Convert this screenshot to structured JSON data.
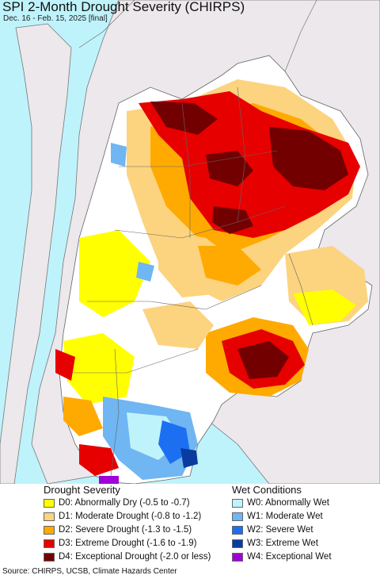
{
  "title": "SPI 2-Month Drought Severity (CHIRPS)",
  "subtitle": "Dec. 16 - Feb. 15, 2025 [final]",
  "source": "Source: CHIRPS, UCSB, Climate Hazards Center",
  "legend": {
    "drought": {
      "heading": "Drought Severity",
      "items": [
        {
          "label": "D0: Abnormally Dry (-0.5 to -0.7)",
          "color": "#ffff00"
        },
        {
          "label": "D1: Moderate Drought (-0.8 to -1.2)",
          "color": "#fcd37f"
        },
        {
          "label": "D2: Severe Drought (-1.3 to -1.5)",
          "color": "#ffaa00"
        },
        {
          "label": "D3: Extreme Drought (-1.6 to -1.9)",
          "color": "#e60000"
        },
        {
          "label": "D4: Exceptional Drought (-2.0 or less)",
          "color": "#730000"
        }
      ]
    },
    "wet": {
      "heading": "Wet Conditions",
      "items": [
        {
          "label": "W0: Abnormally Wet",
          "color": "#bff3fb"
        },
        {
          "label": "W1: Moderate Wet",
          "color": "#6fb6f2"
        },
        {
          "label": "W2: Severe Wet",
          "color": "#1d6ff2"
        },
        {
          "label": "W3: Extreme Wet",
          "color": "#0a3ca0"
        },
        {
          "label": "W4: Exceptional Wet",
          "color": "#a000d8"
        }
      ]
    }
  }
}
